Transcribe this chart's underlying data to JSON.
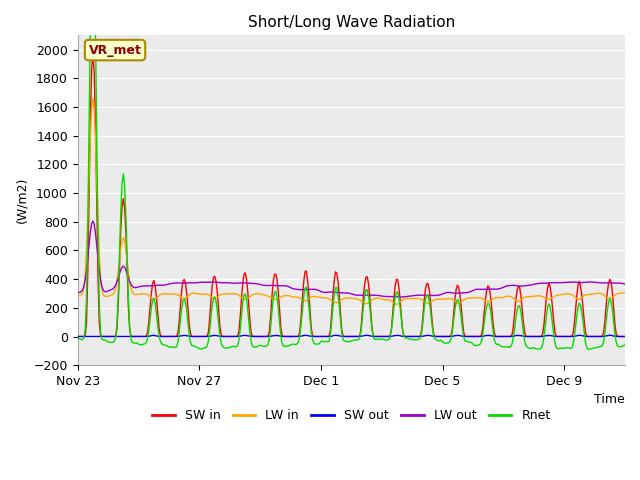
{
  "title": "Short/Long Wave Radiation",
  "ylabel": "(W/m2)",
  "xlabel": "Time",
  "ylim": [
    -200,
    2100
  ],
  "yticks": [
    -200,
    0,
    200,
    400,
    600,
    800,
    1000,
    1200,
    1400,
    1600,
    1800,
    2000
  ],
  "annotation": "VR_met",
  "bg_color": "#ebebeb",
  "lines": {
    "SW_in": {
      "color": "#ff0000",
      "label": "SW in",
      "lw": 1.0
    },
    "LW_in": {
      "color": "#ffa500",
      "label": "LW in",
      "lw": 1.0
    },
    "SW_out": {
      "color": "#0000ff",
      "label": "SW out",
      "lw": 1.0
    },
    "LW_out": {
      "color": "#9900cc",
      "label": "LW out",
      "lw": 1.0
    },
    "Rnet": {
      "color": "#00dd00",
      "label": "Rnet",
      "lw": 1.0
    }
  },
  "xtick_labels": [
    "Nov 23",
    "Nov 27",
    "Dec 1",
    "Dec 5",
    "Dec 9"
  ],
  "xtick_positions": [
    0,
    4,
    8,
    12,
    16
  ],
  "legend_labels": [
    "SW in",
    "LW in",
    "SW out",
    "LW out",
    "Rnet"
  ],
  "legend_colors": [
    "#ff0000",
    "#ffa500",
    "#0000ff",
    "#9900cc",
    "#00dd00"
  ]
}
